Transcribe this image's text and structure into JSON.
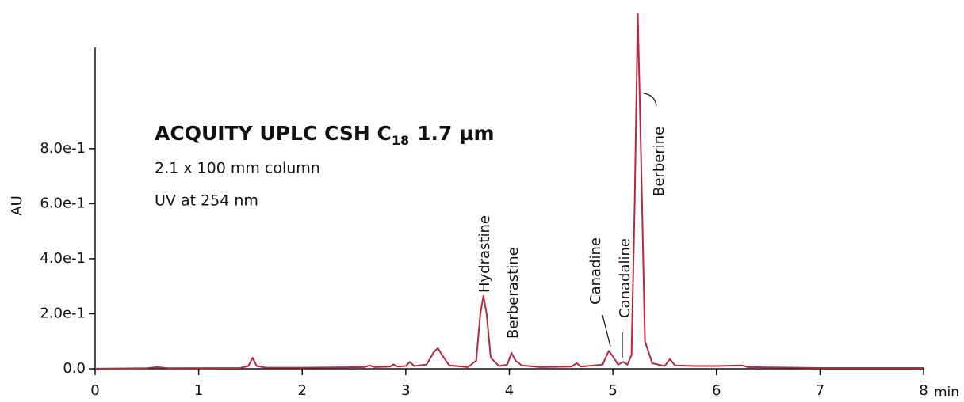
{
  "chart_data": {
    "type": "line",
    "title": {
      "text": "ACQUITY UPLC CSH C",
      "subscript": "18",
      "suffix": "1.7 µm"
    },
    "subtitle": [
      "2.1 x 100 mm column",
      "UV at 254 nm"
    ],
    "x_label": "min",
    "y_label": "AU",
    "xlim": [
      0,
      8
    ],
    "xticks": [
      0,
      1,
      2,
      3,
      4,
      5,
      6,
      7,
      8
    ],
    "ylim": [
      0,
      1.3
    ],
    "yticks": [
      {
        "value": 0,
        "label": "0.0"
      },
      {
        "value": 0.2,
        "label": "2.0e-1"
      },
      {
        "value": 0.4,
        "label": "4.0e-1"
      },
      {
        "value": 0.6,
        "label": "6.0e-1"
      },
      {
        "value": 0.8,
        "label": "8.0e-1"
      }
    ],
    "annotations": [
      "Hydrastine",
      "Berberastine",
      "Canadine",
      "Canadaline",
      "Berberine"
    ],
    "series": [
      {
        "name": "UV 254 nm",
        "color": "#b8283c",
        "x": [
          0,
          0.5,
          0.6,
          0.7,
          1.4,
          1.48,
          1.52,
          1.56,
          1.65,
          2.0,
          2.6,
          2.65,
          2.7,
          2.85,
          2.88,
          2.92,
          3.0,
          3.04,
          3.08,
          3.2,
          3.27,
          3.31,
          3.35,
          3.42,
          3.6,
          3.68,
          3.72,
          3.75,
          3.78,
          3.82,
          3.9,
          3.98,
          4.02,
          4.06,
          4.12,
          4.3,
          4.6,
          4.65,
          4.69,
          4.9,
          4.96,
          5.0,
          5.05,
          5.1,
          5.14,
          5.18,
          5.21,
          5.24,
          5.27,
          5.31,
          5.38,
          5.5,
          5.55,
          5.6,
          5.8,
          6.0,
          6.25,
          6.3,
          7.0,
          8.0
        ],
        "values": [
          0,
          0.002,
          0.006,
          0.002,
          0.003,
          0.01,
          0.04,
          0.01,
          0.004,
          0.004,
          0.006,
          0.012,
          0.006,
          0.008,
          0.016,
          0.008,
          0.01,
          0.025,
          0.01,
          0.015,
          0.06,
          0.075,
          0.05,
          0.012,
          0.006,
          0.03,
          0.2,
          0.265,
          0.2,
          0.04,
          0.01,
          0.015,
          0.058,
          0.03,
          0.012,
          0.006,
          0.008,
          0.02,
          0.008,
          0.015,
          0.065,
          0.045,
          0.015,
          0.025,
          0.015,
          0.05,
          0.6,
          1.29,
          0.8,
          0.1,
          0.02,
          0.01,
          0.035,
          0.012,
          0.01,
          0.01,
          0.012,
          0.006,
          0.003,
          0.003
        ]
      }
    ]
  }
}
